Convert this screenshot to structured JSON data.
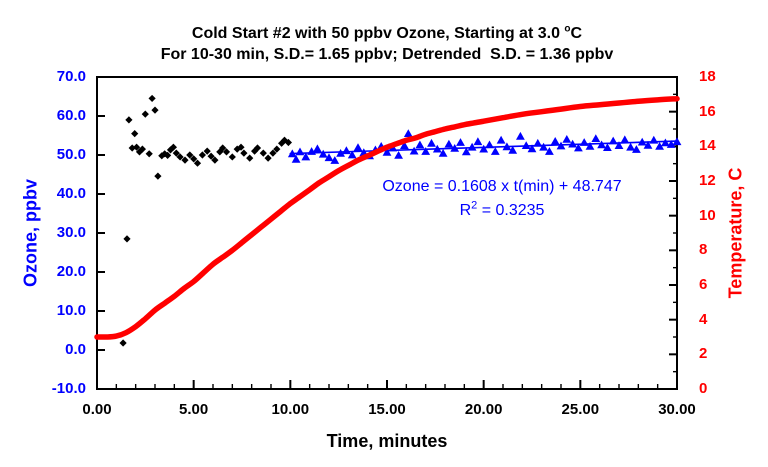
{
  "chart": {
    "title_line1_prefix": "Cold Start #2 with 50 ppbv Ozone, Starting at 3.0 ",
    "title_line1_sup": "o",
    "title_line1_suffix": "C",
    "title_line2": "For 10-30 min, S.D.= 1.65 ppbv; Detrended  S.D. = 1.36 ppbv",
    "left_axis_label": "Ozone, ppbv",
    "right_axis_label": "Temperature, C",
    "x_axis_label": "Time, minutes",
    "annotation_equation": "Ozone = 0.1608 x t(min) + 48.747",
    "annotation_r2_prefix": "R",
    "annotation_r2_sup": "2",
    "annotation_r2_suffix": " = 0.3235",
    "colors": {
      "ozone_blue": "#0000ff",
      "temperature_red": "#ff0000",
      "initial_ozone_black": "#000000",
      "axis_black": "#000000",
      "background": "#ffffff"
    }
  },
  "chart_data": {
    "type": "scatter",
    "title": "Cold Start #2 with 50 ppbv Ozone, Starting at 3.0 °C",
    "subtitle": "For 10-30 min, S.D.= 1.65 ppbv; Detrended S.D. = 1.36 ppbv",
    "xlabel": "Time, minutes",
    "x_axis": {
      "range": [
        0,
        30
      ],
      "major_ticks": [
        0,
        5,
        10,
        15,
        20,
        25,
        30
      ],
      "tick_labels": [
        "0.00",
        "5.00",
        "10.00",
        "15.00",
        "20.00",
        "25.00",
        "30.00"
      ],
      "minor_step": 1
    },
    "y_left": {
      "label": "Ozone, ppbv",
      "range": [
        -10,
        70
      ],
      "major_ticks": [
        70,
        60,
        50,
        40,
        30,
        20,
        10,
        0,
        -10
      ],
      "tick_labels": [
        "70.0",
        "60.0",
        "50.0",
        "40.0",
        "30.0",
        "20.0",
        "10.0",
        "0.0",
        "-10.0"
      ],
      "color": "#0000ff"
    },
    "y_right": {
      "label": "Temperature, C",
      "range": [
        0,
        18
      ],
      "major_ticks": [
        18,
        16,
        14,
        12,
        10,
        8,
        6,
        4,
        2,
        0
      ],
      "tick_labels": [
        "18",
        "16",
        "14",
        "12",
        "10",
        "8",
        "6",
        "4",
        "2",
        "0"
      ],
      "minor_step": 1,
      "color": "#ff0000"
    },
    "fit": {
      "slope": 0.1608,
      "intercept": 48.747,
      "r_squared": 0.3235,
      "equation": "Ozone = 0.1608 x t(min) + 48.747"
    },
    "series": [
      {
        "name": "ozone-startup",
        "axis": "left",
        "marker": "diamond",
        "color": "#000000",
        "points": [
          [
            1.35,
            1.8
          ],
          [
            1.55,
            28.5
          ],
          [
            1.65,
            59.0
          ],
          [
            1.82,
            51.8
          ],
          [
            1.95,
            55.5
          ],
          [
            2.05,
            52.0
          ],
          [
            2.2,
            50.8
          ],
          [
            2.35,
            51.5
          ],
          [
            2.5,
            60.5
          ],
          [
            2.7,
            50.3
          ],
          [
            2.85,
            64.5
          ],
          [
            3.0,
            61.5
          ],
          [
            3.15,
            44.6
          ],
          [
            3.35,
            49.8
          ],
          [
            3.5,
            50.3
          ],
          [
            3.65,
            49.9
          ],
          [
            3.8,
            51.3
          ],
          [
            3.95,
            52.0
          ],
          [
            4.1,
            50.5
          ],
          [
            4.3,
            49.5
          ],
          [
            4.55,
            48.7
          ],
          [
            4.8,
            50.0
          ],
          [
            5.0,
            49.0
          ],
          [
            5.2,
            47.9
          ],
          [
            5.45,
            50.0
          ],
          [
            5.7,
            51.0
          ],
          [
            5.9,
            49.7
          ],
          [
            6.1,
            48.7
          ],
          [
            6.35,
            50.8
          ],
          [
            6.5,
            51.8
          ],
          [
            6.7,
            50.8
          ],
          [
            7.0,
            49.5
          ],
          [
            7.25,
            51.5
          ],
          [
            7.45,
            52.0
          ],
          [
            7.6,
            50.5
          ],
          [
            7.9,
            49.2
          ],
          [
            8.15,
            51.0
          ],
          [
            8.3,
            51.8
          ],
          [
            8.6,
            50.5
          ],
          [
            8.85,
            49.2
          ],
          [
            9.1,
            50.5
          ],
          [
            9.3,
            51.5
          ],
          [
            9.55,
            53.0
          ],
          [
            9.7,
            53.8
          ],
          [
            9.9,
            53.2
          ]
        ]
      },
      {
        "name": "ozone-10-30min",
        "axis": "left",
        "marker": "triangle",
        "color": "#0000ff",
        "points": [
          [
            10.1,
            50.3
          ],
          [
            10.3,
            48.9
          ],
          [
            10.5,
            50.8
          ],
          [
            10.8,
            49.5
          ],
          [
            11.1,
            50.9
          ],
          [
            11.4,
            51.6
          ],
          [
            11.7,
            50.2
          ],
          [
            12.0,
            49.3
          ],
          [
            12.3,
            48.6
          ],
          [
            12.6,
            50.4
          ],
          [
            12.9,
            51.1
          ],
          [
            13.2,
            50.0
          ],
          [
            13.5,
            51.9
          ],
          [
            13.8,
            50.6
          ],
          [
            14.1,
            49.8
          ],
          [
            14.4,
            51.3
          ],
          [
            14.7,
            52.2
          ],
          [
            15.0,
            50.7
          ],
          [
            15.3,
            51.8
          ],
          [
            15.6,
            49.9
          ],
          [
            15.9,
            52.4
          ],
          [
            16.1,
            55.5
          ],
          [
            16.4,
            51.0
          ],
          [
            16.7,
            52.6
          ],
          [
            17.0,
            50.9
          ],
          [
            17.3,
            53.0
          ],
          [
            17.6,
            51.5
          ],
          [
            17.9,
            50.4
          ],
          [
            18.2,
            52.8
          ],
          [
            18.5,
            51.7
          ],
          [
            18.8,
            53.2
          ],
          [
            19.1,
            50.8
          ],
          [
            19.4,
            52.0
          ],
          [
            19.7,
            53.4
          ],
          [
            20.0,
            51.5
          ],
          [
            20.3,
            52.6
          ],
          [
            20.6,
            50.9
          ],
          [
            20.9,
            53.8
          ],
          [
            21.2,
            52.1
          ],
          [
            21.5,
            51.2
          ],
          [
            21.9,
            54.8
          ],
          [
            22.2,
            52.4
          ],
          [
            22.5,
            51.6
          ],
          [
            22.8,
            53.0
          ],
          [
            23.1,
            52.0
          ],
          [
            23.4,
            50.9
          ],
          [
            23.7,
            53.5
          ],
          [
            24.0,
            52.3
          ],
          [
            24.3,
            54.0
          ],
          [
            24.6,
            52.8
          ],
          [
            24.9,
            51.8
          ],
          [
            25.2,
            53.2
          ],
          [
            25.5,
            52.2
          ],
          [
            25.8,
            54.2
          ],
          [
            26.1,
            52.6
          ],
          [
            26.4,
            51.9
          ],
          [
            26.7,
            53.6
          ],
          [
            27.0,
            52.4
          ],
          [
            27.3,
            53.9
          ],
          [
            27.6,
            52.0
          ],
          [
            27.9,
            51.4
          ],
          [
            28.2,
            53.3
          ],
          [
            28.5,
            52.5
          ],
          [
            28.8,
            53.8
          ],
          [
            29.1,
            52.2
          ],
          [
            29.4,
            53.1
          ],
          [
            29.7,
            52.7
          ],
          [
            30.0,
            53.4
          ]
        ]
      },
      {
        "name": "ozone-fit-line",
        "axis": "left",
        "type": "line",
        "color": "#0000ff",
        "width": 1.6,
        "points": [
          [
            10,
            50.355
          ],
          [
            30,
            53.571
          ]
        ]
      },
      {
        "name": "temperature",
        "axis": "right",
        "type": "line",
        "color": "#ff0000",
        "width": 5.5,
        "points": [
          [
            0,
            3.0
          ],
          [
            0.5,
            3.0
          ],
          [
            1,
            3.05
          ],
          [
            1.5,
            3.25
          ],
          [
            2,
            3.6
          ],
          [
            2.5,
            4.05
          ],
          [
            3,
            4.55
          ],
          [
            3.5,
            4.95
          ],
          [
            4,
            5.35
          ],
          [
            4.5,
            5.8
          ],
          [
            5,
            6.2
          ],
          [
            5.5,
            6.7
          ],
          [
            6,
            7.2
          ],
          [
            6.5,
            7.6
          ],
          [
            7,
            8.0
          ],
          [
            7.5,
            8.45
          ],
          [
            8,
            8.9
          ],
          [
            8.5,
            9.35
          ],
          [
            9,
            9.8
          ],
          [
            9.5,
            10.25
          ],
          [
            10,
            10.7
          ],
          [
            10.5,
            11.1
          ],
          [
            11,
            11.5
          ],
          [
            11.5,
            11.9
          ],
          [
            12,
            12.25
          ],
          [
            12.5,
            12.6
          ],
          [
            13,
            12.9
          ],
          [
            13.5,
            13.2
          ],
          [
            14,
            13.45
          ],
          [
            14.5,
            13.7
          ],
          [
            15,
            13.95
          ],
          [
            15.5,
            14.15
          ],
          [
            16,
            14.35
          ],
          [
            16.5,
            14.5
          ],
          [
            17,
            14.7
          ],
          [
            17.5,
            14.85
          ],
          [
            18,
            15.0
          ],
          [
            18.5,
            15.12
          ],
          [
            19,
            15.25
          ],
          [
            19.5,
            15.35
          ],
          [
            20,
            15.45
          ],
          [
            21,
            15.65
          ],
          [
            22,
            15.85
          ],
          [
            23,
            16.0
          ],
          [
            24,
            16.15
          ],
          [
            25,
            16.3
          ],
          [
            26,
            16.4
          ],
          [
            27,
            16.5
          ],
          [
            28,
            16.6
          ],
          [
            29,
            16.68
          ],
          [
            30,
            16.75
          ]
        ]
      }
    ],
    "layout": {
      "grid": false,
      "legend": "none",
      "tick_direction": "in"
    }
  }
}
